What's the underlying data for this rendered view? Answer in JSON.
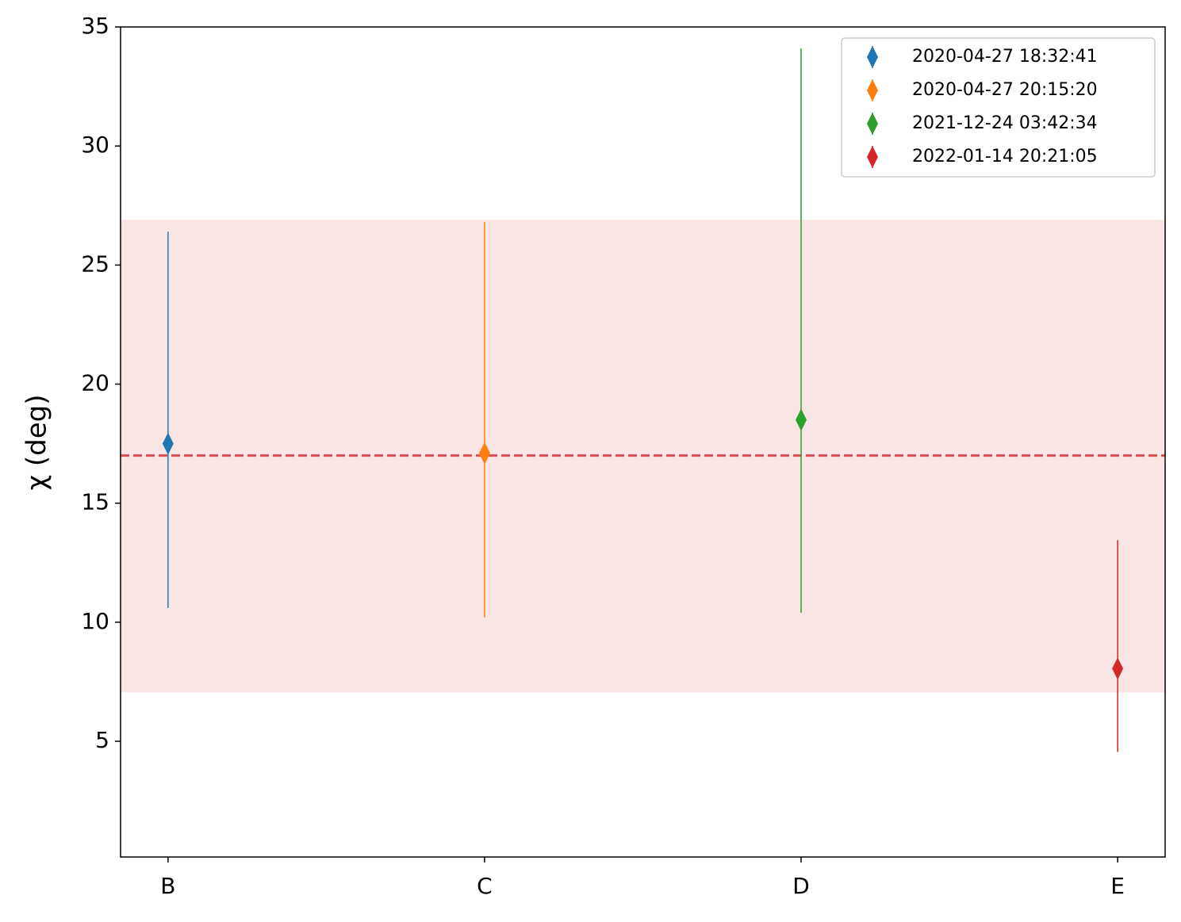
{
  "chart_data": {
    "type": "errorbar",
    "y_label": "χ (deg)",
    "categories": [
      "B",
      "C",
      "D",
      "E"
    ],
    "xlim": [
      -0.15,
      3.15
    ],
    "ylim": [
      0.14,
      35
    ],
    "yticks": [
      5,
      10,
      15,
      20,
      25,
      30,
      35
    ],
    "legend": "upper right",
    "reference_line": {
      "value": 17.0,
      "color": "#d62728"
    },
    "band": {
      "range": [
        7.05,
        26.9
      ],
      "color": "#d62728"
    },
    "series": [
      {
        "name": "2020-04-27 18:32:41",
        "color": "#1f77b4",
        "values": [
          17.5,
          null,
          null,
          null
        ],
        "err_minus": [
          6.9,
          null,
          null,
          null
        ],
        "err_plus": [
          8.9,
          null,
          null,
          null
        ]
      },
      {
        "name": "2020-04-27 20:15:20",
        "color": "#ff7f0e",
        "values": [
          null,
          17.1,
          null,
          null
        ],
        "err_minus": [
          null,
          6.9,
          null,
          null
        ],
        "err_plus": [
          null,
          9.7,
          null,
          null
        ]
      },
      {
        "name": "2021-12-24 03:42:34",
        "color": "#2ca02c",
        "values": [
          null,
          null,
          18.5,
          null
        ],
        "err_minus": [
          null,
          null,
          8.1,
          null
        ],
        "err_plus": [
          null,
          null,
          15.6,
          null
        ]
      },
      {
        "name": "2022-01-14 20:21:05",
        "color": "#d62728",
        "values": [
          null,
          null,
          null,
          8.05
        ],
        "err_minus": [
          null,
          null,
          null,
          3.5
        ],
        "err_plus": [
          null,
          null,
          null,
          5.4
        ]
      }
    ]
  }
}
